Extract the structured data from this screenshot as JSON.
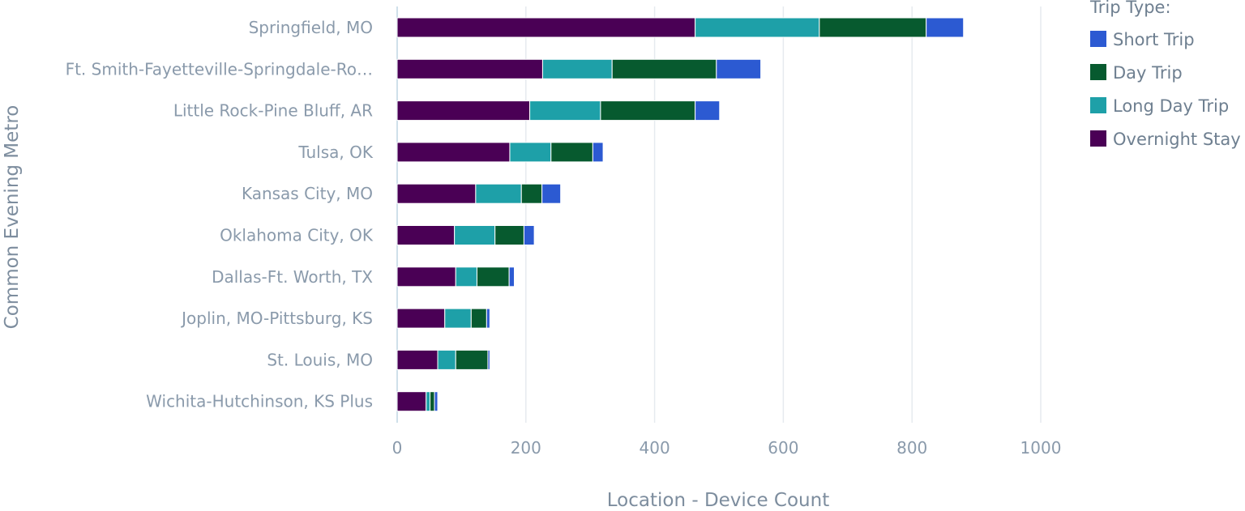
{
  "chart_data": {
    "type": "bar",
    "orientation": "horizontal",
    "stacked": true,
    "xlabel": "Location - Device Count",
    "ylabel": "Common Evening Metro",
    "xlim": [
      0,
      1000
    ],
    "xticks": [
      "0",
      "200",
      "400",
      "600",
      "800",
      "1000"
    ],
    "grid": true,
    "legend_title": "Trip Type:",
    "legend_position": "top-right",
    "categories": [
      "Springfield, MO",
      "Ft. Smith-Fayetteville-Springdale-Ro…",
      "Little Rock-Pine Bluff, AR",
      "Tulsa, OK",
      "Kansas City, MO",
      "Oklahoma City, OK",
      "Dallas-Ft. Worth, TX",
      "Joplin, MO-Pittsburg, KS",
      "St. Louis, MO",
      "Wichita-Hutchinson, KS Plus"
    ],
    "series": [
      {
        "name": "Overnight Stay",
        "color": "#4a0055",
        "values": [
          463,
          226,
          206,
          175,
          122,
          89,
          91,
          74,
          63,
          45
        ]
      },
      {
        "name": "Long Day Trip",
        "color": "#1ea0a8",
        "values": [
          193,
          108,
          110,
          64,
          71,
          63,
          33,
          41,
          28,
          6
        ]
      },
      {
        "name": "Day Trip",
        "color": "#075a2f",
        "values": [
          166,
          162,
          147,
          65,
          32,
          45,
          50,
          24,
          50,
          7
        ]
      },
      {
        "name": "Short Trip",
        "color": "#2c5ad2",
        "values": [
          58,
          69,
          38,
          16,
          29,
          16,
          8,
          5,
          3,
          5
        ]
      }
    ],
    "legend_order": [
      "Short Trip",
      "Day Trip",
      "Long Day Trip",
      "Overnight Stay"
    ]
  }
}
